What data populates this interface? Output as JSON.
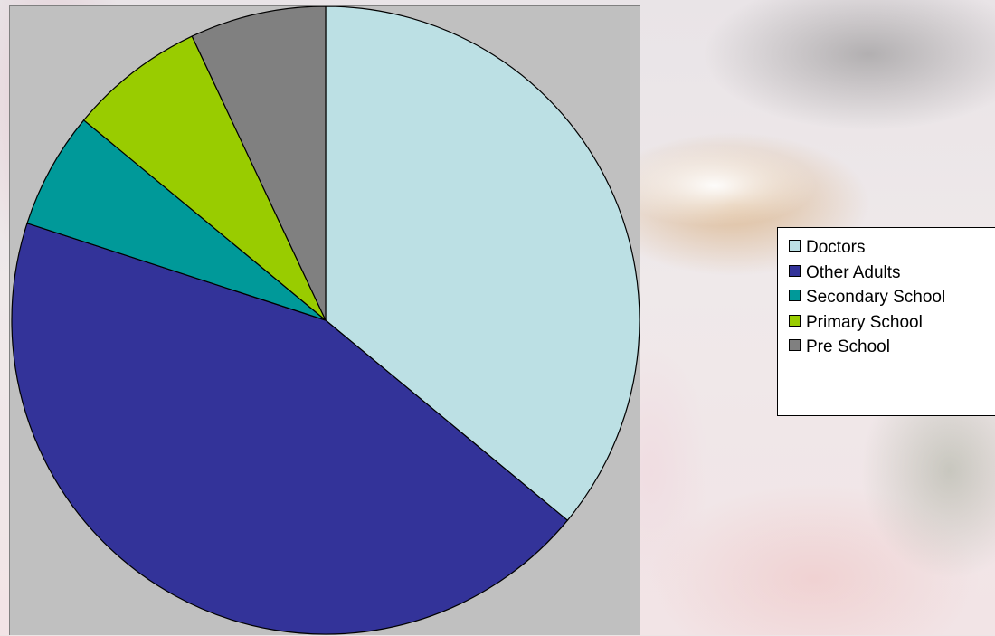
{
  "chart_data": {
    "type": "pie",
    "title": "",
    "legend_position": "right",
    "slices": [
      {
        "label": "Doctors",
        "value": 36,
        "color": "#bce0e4"
      },
      {
        "label": "Other Adults",
        "value": 44,
        "color": "#333399"
      },
      {
        "label": "Secondary School",
        "value": 6,
        "color": "#009999"
      },
      {
        "label": "Primary School",
        "value": 7,
        "color": "#99cc00"
      },
      {
        "label": "Pre School",
        "value": 7,
        "color": "#808080"
      }
    ]
  }
}
